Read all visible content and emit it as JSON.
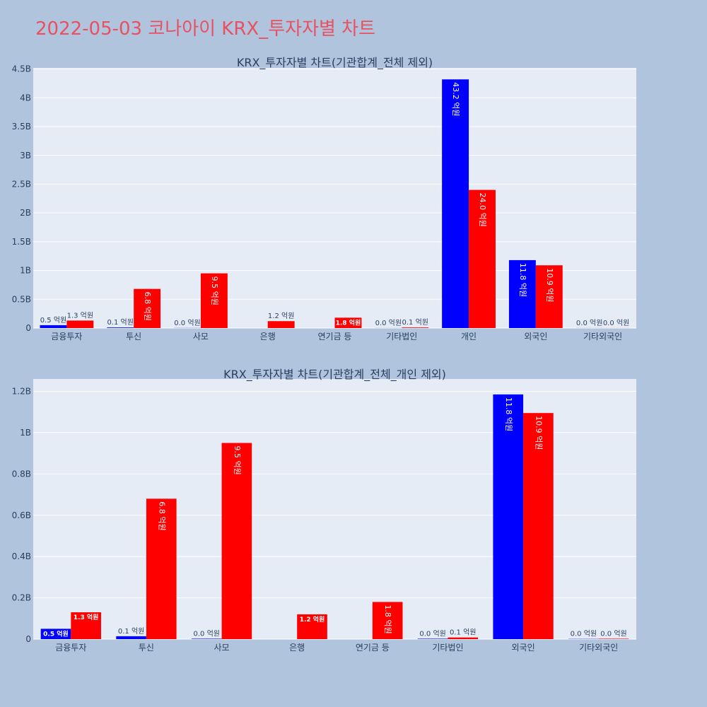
{
  "page_title": "2022-05-03 코나아이 KRX_투자자별 차트",
  "colors": {
    "buy": "#0000ff",
    "sell": "#ff0000",
    "plot_bg": "#e5ecf6",
    "page_bg": "#b0c4de",
    "title": "#e8515f"
  },
  "chart_data": [
    {
      "type": "bar",
      "title": "KRX_투자자별 차트(기관합계_전체 제외)",
      "categories": [
        "금융투자",
        "투신",
        "사모",
        "은행",
        "연기금 등",
        "기타법인",
        "개인",
        "외국인",
        "기타외국인"
      ],
      "series": [
        {
          "values": [
            0.05,
            0.01,
            0.002,
            0,
            0,
            0.001,
            4.32,
            1.18,
            0.001
          ],
          "labels": [
            "0.5 억원",
            "0.1 억원",
            "0.0 억원",
            "",
            "",
            "0.0 억원",
            "43.2 억원",
            "11.8 억원",
            "0.0 억원"
          ]
        },
        {
          "values": [
            0.13,
            0.68,
            0.95,
            0.12,
            0.18,
            0.01,
            2.4,
            1.09,
            0.001
          ],
          "labels": [
            "1.3 억원",
            "6.8 억원",
            "9.5 억원",
            "1.2 억원",
            "1.8 억원",
            "0.1 억원",
            "24.0 억원",
            "10.9 억원",
            "0.0 억원"
          ]
        }
      ],
      "yticks": [
        0,
        0.5,
        1,
        1.5,
        2,
        2.5,
        3,
        3.5,
        4,
        4.5
      ],
      "ytick_labels": [
        "0",
        "0.5B",
        "1B",
        "1.5B",
        "2B",
        "2.5B",
        "3B",
        "3.5B",
        "4B",
        "4.5B"
      ],
      "ylim": [
        0,
        4.52
      ],
      "grid": true,
      "legend": "none"
    },
    {
      "type": "bar",
      "title": "KRX_투자자별 차트(기관합계_전체_개인 제외)",
      "categories": [
        "금융투자",
        "투신",
        "사모",
        "은행",
        "연기금 등",
        "기타법인",
        "외국인",
        "기타외국인"
      ],
      "series": [
        {
          "values": [
            0.05,
            0.014,
            0.002,
            0,
            0,
            0.002,
            1.185,
            0.001
          ],
          "labels": [
            "0.5 억원",
            "0.1 억원",
            "0.0 억원",
            "",
            "",
            "0.0 억원",
            "11.8 억원",
            "0.0 억원"
          ]
        },
        {
          "values": [
            0.13,
            0.68,
            0.95,
            0.12,
            0.18,
            0.008,
            1.095,
            0.002
          ],
          "labels": [
            "1.3 억원",
            "6.8 억원",
            "9.5 억원",
            "1.2 억원",
            "1.8 억원",
            "0.1 억원",
            "10.9 억원",
            "0.0 억원"
          ]
        }
      ],
      "yticks": [
        0,
        0.2,
        0.4,
        0.6,
        0.8,
        1.0,
        1.2
      ],
      "ytick_labels": [
        "0",
        "0.2B",
        "0.4B",
        "0.6B",
        "0.8B",
        "1B",
        "1.2B"
      ],
      "ylim": [
        0,
        1.26
      ],
      "grid": true,
      "legend": "none"
    }
  ]
}
